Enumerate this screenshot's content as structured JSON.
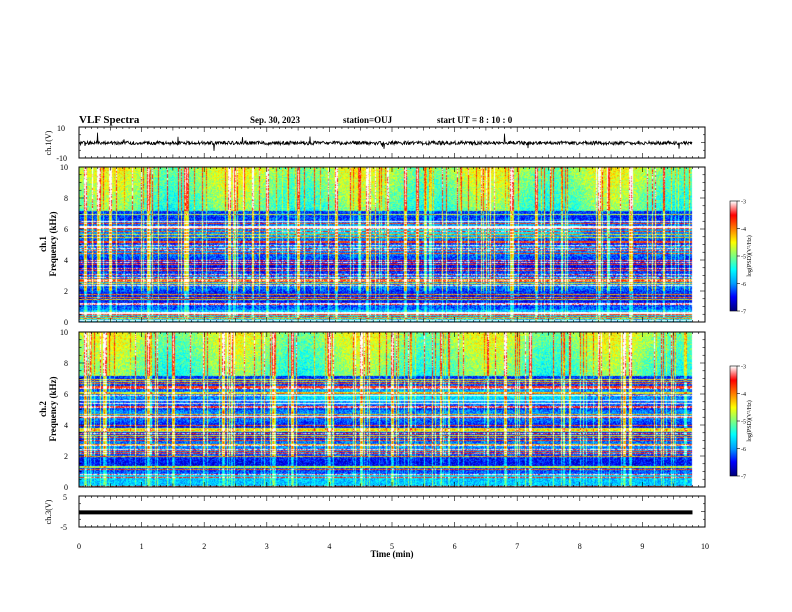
{
  "header": {
    "title": "VLF Spectra",
    "date": "Sep. 30, 2023",
    "station": "station=OUJ",
    "start_ut": "start  UT =   8  : 10 : 0"
  },
  "chart_data": [
    {
      "type": "line",
      "id": "waveform_ch1",
      "ylabel": "ch.1(V)",
      "ylim": [
        -10,
        10
      ],
      "yticks": [
        10,
        -10
      ],
      "xlim": [
        0,
        10
      ]
    },
    {
      "type": "heatmap",
      "id": "spectrogram_ch1",
      "ylabel": "ch.1\nFrequency  (kHz)",
      "ylim": [
        0,
        10
      ],
      "yticks": [
        0,
        2,
        4,
        6,
        8,
        10
      ],
      "xlim": [
        0,
        10
      ],
      "data_end_min": 9.8,
      "colorbar": {
        "label": "log(PSD)(V²/Hz)",
        "range": [
          -7,
          -3
        ],
        "ticks": [
          -3,
          -4,
          -5,
          -6,
          -7
        ]
      },
      "strong_event_times_min": [
        0.1,
        0.3,
        0.5,
        1.1,
        1.7,
        2.4,
        3.0,
        3.5,
        4.1,
        4.6,
        5.2,
        5.4,
        6.9,
        7.3,
        8.3,
        8.8
      ]
    },
    {
      "type": "heatmap",
      "id": "spectrogram_ch2",
      "ylabel": "ch.2\nFrequency  (kHz)",
      "ylim": [
        0,
        10
      ],
      "yticks": [
        0,
        2,
        4,
        6,
        8,
        10
      ],
      "xlim": [
        0,
        10
      ],
      "data_end_min": 9.8,
      "colorbar": {
        "label": "log(PSD)(V²/Hz)",
        "range": [
          -7,
          -3
        ],
        "ticks": [
          -3,
          -4,
          -5,
          -6,
          -7
        ]
      },
      "strong_event_times_min": [
        0.1,
        0.4,
        1.1,
        1.5,
        2.3,
        3.1,
        3.4,
        4.0,
        4.5,
        5.0,
        6.8,
        7.2,
        8.7,
        8.8
      ]
    },
    {
      "type": "line",
      "id": "waveform_ch3",
      "ylabel": "ch.3(V)",
      "ylim": [
        -5,
        5
      ],
      "yticks": [
        5,
        -5
      ],
      "xlim": [
        0,
        10
      ],
      "xlabel": "Time  (min)",
      "xticks": [
        0,
        1,
        2,
        3,
        4,
        5,
        6,
        7,
        8,
        9,
        10
      ],
      "constant_value": -0.3
    }
  ],
  "colors": {
    "colormap": [
      "#00007f",
      "#0000ff",
      "#00a0ff",
      "#00ffff",
      "#7fff7f",
      "#ffff00",
      "#ff7f00",
      "#ff0000",
      "#ffffff"
    ],
    "axes": "#000000",
    "waveform": "#000000"
  }
}
